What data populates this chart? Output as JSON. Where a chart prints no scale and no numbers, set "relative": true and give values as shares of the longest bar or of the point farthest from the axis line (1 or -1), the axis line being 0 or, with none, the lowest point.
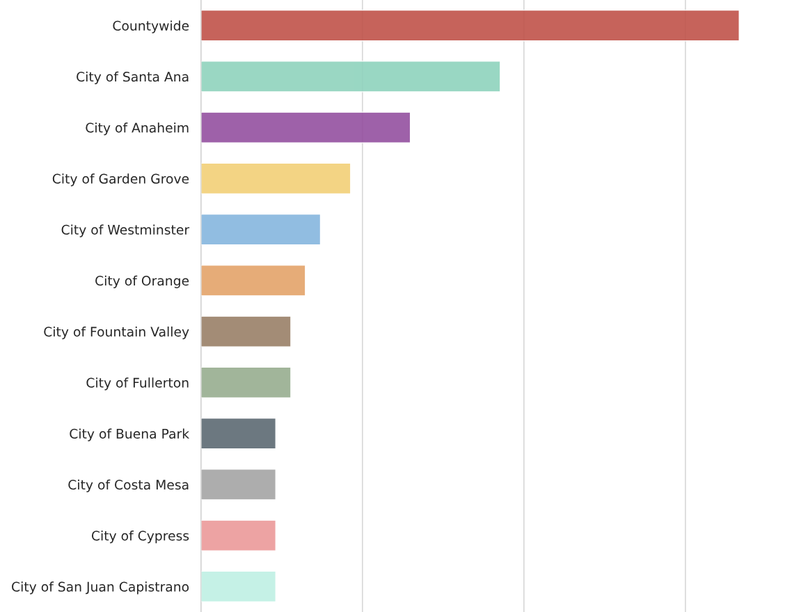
{
  "chart_data": {
    "type": "bar",
    "orientation": "horizontal",
    "relative": true,
    "grid": "x",
    "categories": [
      "Countywide",
      "City of Santa Ana",
      "City of Anaheim",
      "City of Garden Grove",
      "City of Westminster",
      "City of Orange",
      "City of Fountain Valley",
      "City of Fullerton",
      "City of Buena Park",
      "City of Costa Mesa",
      "City of Cypress",
      "City of San Juan Capistrano"
    ],
    "values": [
      1,
      0.556,
      0.389,
      0.278,
      0.222,
      0.194,
      0.167,
      0.167,
      0.139,
      0.139,
      0.139,
      0.139
    ],
    "colors": [
      "#c0534a",
      "#8fd3bd",
      "#9450a0",
      "#f2d077",
      "#85b6de",
      "#e4a46a",
      "#9a8068",
      "#97ad8f",
      "#5c6a73",
      "#a5a5a5",
      "#eb9999",
      "#bff0e4"
    ]
  }
}
